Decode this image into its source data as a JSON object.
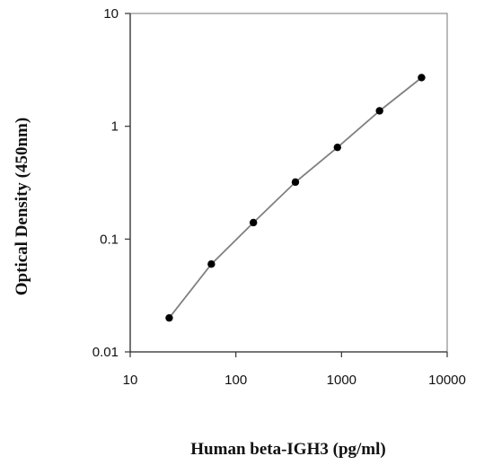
{
  "chart_data": {
    "type": "line",
    "title": "",
    "xlabel": "Human beta-IGH3  (pg/ml)",
    "ylabel": "Optical Density (450nm)",
    "xscale": "log",
    "yscale": "log",
    "xlim": [
      10,
      10000
    ],
    "ylim": [
      0.01,
      10
    ],
    "x_ticks": [
      "10",
      "100",
      "1000",
      "10000"
    ],
    "y_ticks": [
      "10",
      "1",
      "0.1",
      "0.01"
    ],
    "grid": false,
    "legend": "none",
    "series": [
      {
        "x": [
          23.4,
          58.6,
          146.5,
          366,
          915,
          2290,
          5720
        ],
        "y": [
          0.02,
          0.06,
          0.14,
          0.32,
          0.65,
          1.37,
          2.7
        ]
      }
    ],
    "line_color": "#808080",
    "marker_color": "#000000"
  }
}
